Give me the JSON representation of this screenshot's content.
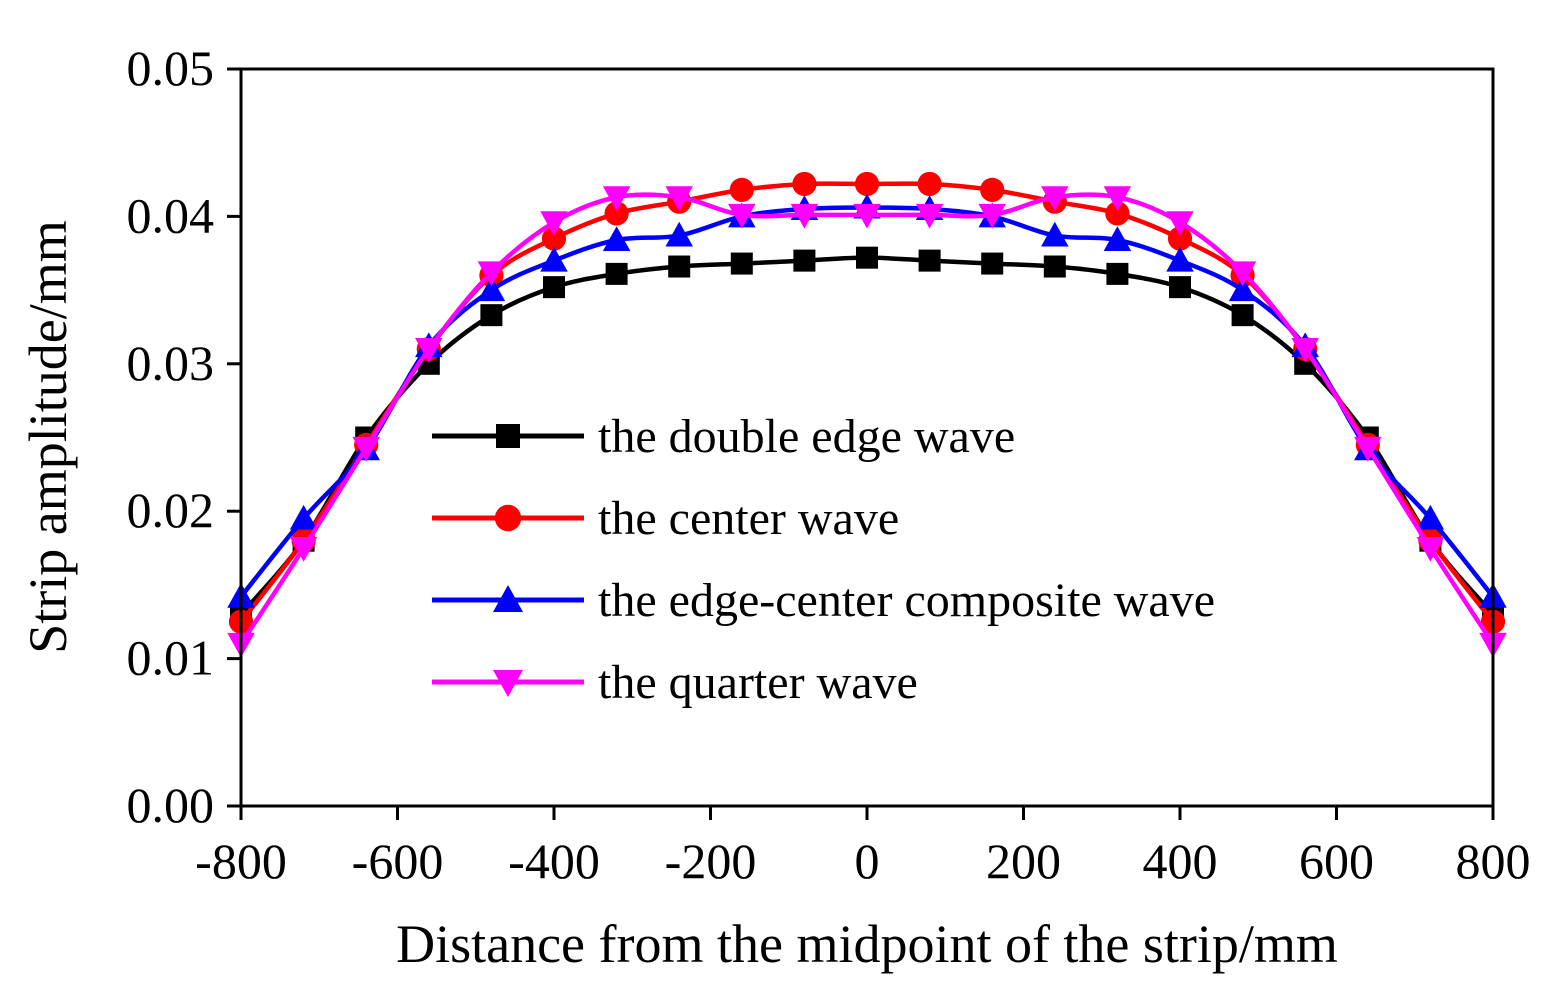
{
  "chart_data": {
    "type": "line",
    "title": "",
    "xlabel": "Distance from the midpoint of the strip/mm",
    "ylabel": "Strip amplitude/mm",
    "xlim": [
      -800,
      800
    ],
    "ylim": [
      0,
      0.05
    ],
    "xticks": [
      -800,
      -600,
      -400,
      -200,
      0,
      200,
      400,
      600,
      800
    ],
    "xtick_labels": [
      "-800",
      "-600",
      "-400",
      "-200",
      "0",
      "200",
      "400",
      "600",
      "800"
    ],
    "yticks": [
      0,
      0.01,
      0.02,
      0.03,
      0.04,
      0.05
    ],
    "ytick_labels": [
      "0.00",
      "0.01",
      "0.02",
      "0.03",
      "0.04",
      "0.05"
    ],
    "grid": false,
    "legend_position": "center-left",
    "x": [
      -800,
      -720,
      -640,
      -560,
      -480,
      -400,
      -320,
      -240,
      -160,
      -80,
      0,
      80,
      160,
      240,
      320,
      400,
      480,
      560,
      640,
      720,
      800
    ],
    "series": [
      {
        "name": "the double edge wave",
        "color": "#000000",
        "marker": "square",
        "values": [
          0.013,
          0.018,
          0.025,
          0.03,
          0.0333,
          0.0352,
          0.0361,
          0.0366,
          0.0368,
          0.037,
          0.0372,
          0.037,
          0.0368,
          0.0366,
          0.0361,
          0.0352,
          0.0333,
          0.03,
          0.025,
          0.018,
          0.013
        ]
      },
      {
        "name": "the center wave",
        "color": "#ff0000",
        "marker": "circle",
        "values": [
          0.0125,
          0.018,
          0.0245,
          0.031,
          0.036,
          0.0385,
          0.0402,
          0.041,
          0.0418,
          0.0422,
          0.0422,
          0.0422,
          0.0418,
          0.041,
          0.0402,
          0.0385,
          0.036,
          0.031,
          0.0245,
          0.018,
          0.0125
        ]
      },
      {
        "name": "the edge-center composite wave",
        "color": "#0000ff",
        "marker": "triangle-up",
        "values": [
          0.0142,
          0.0195,
          0.0242,
          0.0312,
          0.035,
          0.037,
          0.0384,
          0.0387,
          0.04,
          0.0405,
          0.0406,
          0.0405,
          0.04,
          0.0387,
          0.0384,
          0.037,
          0.035,
          0.0312,
          0.0242,
          0.0195,
          0.0142
        ]
      },
      {
        "name": "the quarter wave",
        "color": "#ff00ff",
        "marker": "triangle-down",
        "values": [
          0.011,
          0.0175,
          0.0243,
          0.031,
          0.0362,
          0.0396,
          0.0413,
          0.0413,
          0.0401,
          0.0401,
          0.0401,
          0.0401,
          0.0401,
          0.0413,
          0.0413,
          0.0396,
          0.0362,
          0.031,
          0.0243,
          0.0175,
          0.011
        ]
      }
    ]
  }
}
